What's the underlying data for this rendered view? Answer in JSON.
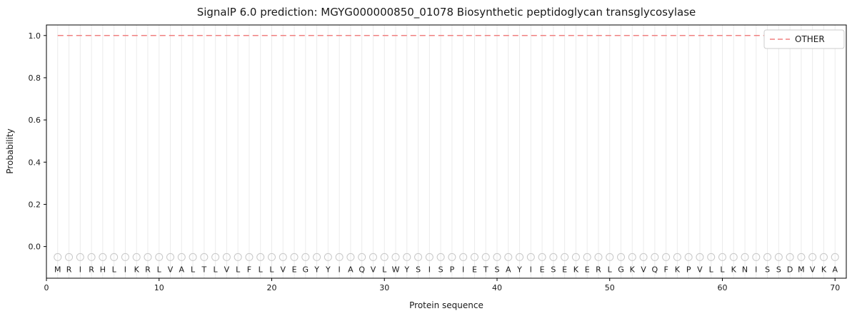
{
  "chart_data": {
    "type": "line",
    "title": "SignalP 6.0 prediction: MGYG000000850_01078 Biosynthetic peptidoglycan transglycosylase",
    "xlabel": "Protein sequence",
    "ylabel": "Probability",
    "xlim": [
      0,
      71
    ],
    "ylim": [
      -0.15,
      1.05
    ],
    "x_ticks": [
      0,
      10,
      20,
      30,
      40,
      50,
      60,
      70
    ],
    "y_ticks": [
      0.0,
      0.2,
      0.4,
      0.6,
      0.8,
      1.0
    ],
    "grid": "vertical-line-per-residue",
    "colors": {
      "other_line": "#f08080",
      "gridline": "#ebebeb",
      "spine": "#000000",
      "residue_marker": "#c8c8c8",
      "text": "#1a1a1a"
    },
    "legend": {
      "position": "upper-right",
      "entries": [
        {
          "label": "OTHER",
          "color": "#f08080",
          "linestyle": "dashed"
        }
      ]
    },
    "sequence": [
      "M",
      "R",
      "I",
      "R",
      "H",
      "L",
      "I",
      "K",
      "R",
      "L",
      "V",
      "A",
      "L",
      "T",
      "L",
      "V",
      "L",
      "F",
      "L",
      "L",
      "V",
      "E",
      "G",
      "Y",
      "Y",
      "I",
      "A",
      "Q",
      "V",
      "L",
      "W",
      "Y",
      "S",
      "I",
      "S",
      "P",
      "I",
      "E",
      "T",
      "S",
      "A",
      "Y",
      "I",
      "E",
      "S",
      "E",
      "K",
      "E",
      "R",
      "L",
      "G",
      "K",
      "V",
      "Q",
      "F",
      "K",
      "P",
      "V",
      "L",
      "L",
      "K",
      "N",
      "I",
      "S",
      "S",
      "D",
      "M",
      "V",
      "K",
      "A"
    ],
    "series": [
      {
        "name": "OTHER",
        "x_start": 1,
        "x_end": 70,
        "y_value": 1.0,
        "color": "#f08080",
        "linestyle": "dashed"
      }
    ],
    "residue_markers": {
      "y": -0.05,
      "shape": "open-circle",
      "letter_y": -0.107
    }
  }
}
